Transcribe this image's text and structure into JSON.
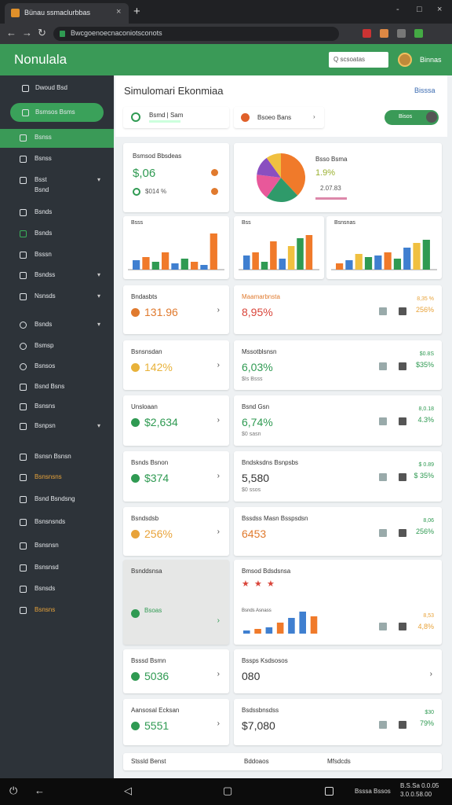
{
  "browser": {
    "tab_title": "Bünau ssmaclurbbas",
    "url": "Bwcgoenoecnaconiotsconots"
  },
  "header": {
    "brand": "Nonulala",
    "search": "Q scsoatas",
    "user": "Binnas"
  },
  "sidebar": {
    "items": [
      "Dwoud Bsd",
      "Bsmsos Bsms",
      "Bsnss",
      "Bsnss",
      "Bsst Bsnd",
      "Bsnds",
      "Bsnds",
      "Bsssn",
      "Bsndss",
      "Nsnsds",
      "Bsnds",
      "Bsmsp",
      "Bsnsos",
      "Bsnd Bsns",
      "Bsnsns",
      "Bsnpsn",
      "Bsnsn Bsnsn",
      "Bsnsnsns",
      "Bsnd Bsndsng",
      "Bsnsnsnds",
      "Bsnsnsn",
      "Bsnsnsd",
      "Bsnsds",
      "Bsnsns"
    ]
  },
  "page": {
    "title": "Simulomari Ekonmiaa",
    "action": "Bisssa",
    "filters": [
      "Bsmd | Sam",
      "Bsoeo Bans",
      "Bisos"
    ]
  },
  "summary": {
    "title": "Bsmsod Bbsdeas",
    "value": "$,06",
    "sub": "$014 %"
  },
  "pie": {
    "title": "Bsso Bsma",
    "value": "1.9%",
    "sub": "2.07.83",
    "values": [
      38,
      22,
      17,
      13,
      10
    ],
    "colors": [
      "#f07a2a",
      "#2f9a6a",
      "#e8589a",
      "#8a4fc0",
      "#f0c040"
    ]
  },
  "bar_charts": [
    {
      "title": "Bsss",
      "values": [
        12,
        16,
        10,
        22,
        8,
        14,
        10,
        6,
        46
      ],
      "colors": [
        "#3f7fd0",
        "#f07a2a",
        "#2f9a52",
        "#f07a2a",
        "#3f7fd0",
        "#2f9a52",
        "#f07a2a",
        "#3f7fd0",
        "#f07a2a"
      ]
    },
    {
      "title": "Bss",
      "values": [
        18,
        22,
        10,
        36,
        14,
        30,
        40,
        44
      ],
      "colors": [
        "#3f7fd0",
        "#f07a2a",
        "#2f9a52",
        "#f07a2a",
        "#3f7fd0",
        "#f0c040",
        "#2f9a52",
        "#f07a2a"
      ]
    },
    {
      "title": "Bsnsnas",
      "values": [
        8,
        12,
        20,
        16,
        18,
        22,
        14,
        28,
        34,
        38
      ],
      "colors": [
        "#f07a2a",
        "#3f7fd0",
        "#f0c040",
        "#2f9a52",
        "#3f7fd0",
        "#f07a2a",
        "#2f9a52",
        "#3f7fd0",
        "#f0c040",
        "#2f9a52"
      ]
    }
  ],
  "card_rows": [
    [
      {
        "title": "Bndasbts",
        "value": "131.96",
        "color": "#e07a2e"
      },
      {
        "title": "Maamarbnsta",
        "value": "8,95%",
        "color": "#d9453a",
        "side": [
          "8,35 %",
          "256%"
        ],
        "side_color": "#e8a33a"
      }
    ],
    [
      {
        "title": "Bsnsnsdan",
        "value": "142%",
        "color": "#e8b23a"
      },
      {
        "title": "Mssotblsnsn",
        "value": "6,03%",
        "color": "#2f9a52",
        "sub": "$Is Bsss",
        "side": [
          "$0.8S",
          "$35%"
        ],
        "side_color": "#2f9a52"
      }
    ],
    [
      {
        "title": "Unsloaan",
        "value": "$2,634",
        "color": "#2f9a52"
      },
      {
        "title": "Bsnd Gsn",
        "value": "6,74%",
        "color": "#2f9a52",
        "sub": "$0 sasn",
        "side": [
          "8,0.18",
          "4.3%"
        ],
        "side_color": "#2f9a52"
      }
    ],
    [
      {
        "title": "Bsnds Bsnon",
        "value": "$374",
        "color": "#2f9a52"
      },
      {
        "title": "Bndsksdns Bsnpsbs",
        "value": "5,580",
        "color": "#333333",
        "sub": "$0 ssos",
        "side": [
          "$ 0.89",
          "$ 35%"
        ],
        "side_color": "#2f9a52"
      }
    ],
    [
      {
        "title": "Bsndsdsb",
        "value": "256%",
        "color": "#e8a33a"
      },
      {
        "title": "Bssdss Masn Bsspsdsn",
        "value": "6453",
        "color": "#e07a2e",
        "side": [
          "8,06",
          "256%"
        ],
        "side_color": "#2f9a52"
      }
    ],
    [
      {
        "title": "Bsnddsnsa",
        "value": "Bsoas",
        "color": "#2f9a52"
      },
      {
        "title": "Bmsod Bdsdsnsa",
        "chart_title": "Bsnds Asnass",
        "values": [
          4,
          6,
          8,
          14,
          20,
          28,
          22
        ],
        "colors": [
          "#3f7fd0",
          "#f07a2a",
          "#3f7fd0",
          "#f07a2a",
          "#3f7fd0",
          "#3f7fd0",
          "#f07a2a"
        ],
        "side": [
          "8,53",
          "4,8%"
        ],
        "side_color": "#e8a33a"
      }
    ],
    [
      {
        "title": "Bsssd Bsmn",
        "value": "5036",
        "color": "#2f9a52"
      },
      {
        "title": "Bssps Ksdsosos",
        "value": "080",
        "color": "#333333"
      }
    ],
    [
      {
        "title": "Aansosal Ecksan",
        "value": "5551",
        "color": "#2f9a52"
      },
      {
        "title": "Bsdssbnsdss",
        "value": "$7,080",
        "color": "#333333",
        "side": [
          "$30",
          "79%"
        ],
        "side_color": "#2f9a52"
      }
    ]
  ],
  "footer": [
    "Stssld Benst",
    "Bddoaos",
    "Mfsdcds"
  ],
  "taskbar": {
    "app": "Bsssa Bssos",
    "status": [
      "B.S.Sa 0.0.05",
      "3.0.0.58.00"
    ]
  }
}
